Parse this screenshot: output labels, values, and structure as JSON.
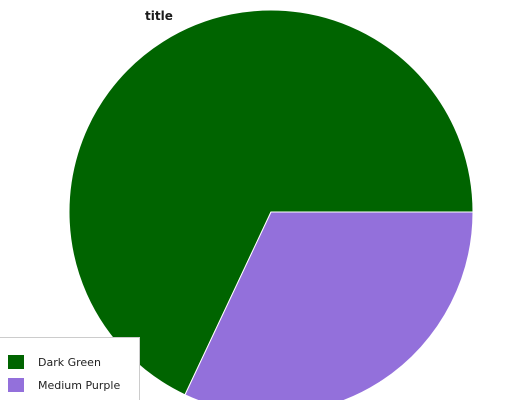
{
  "chart_data": {
    "type": "pie",
    "title": "title",
    "categories": [
      "Dark Green",
      "Medium Purple"
    ],
    "values": [
      68,
      32
    ],
    "colors": [
      "#006400",
      "#9370db"
    ],
    "legend_position": "bottom-left"
  }
}
